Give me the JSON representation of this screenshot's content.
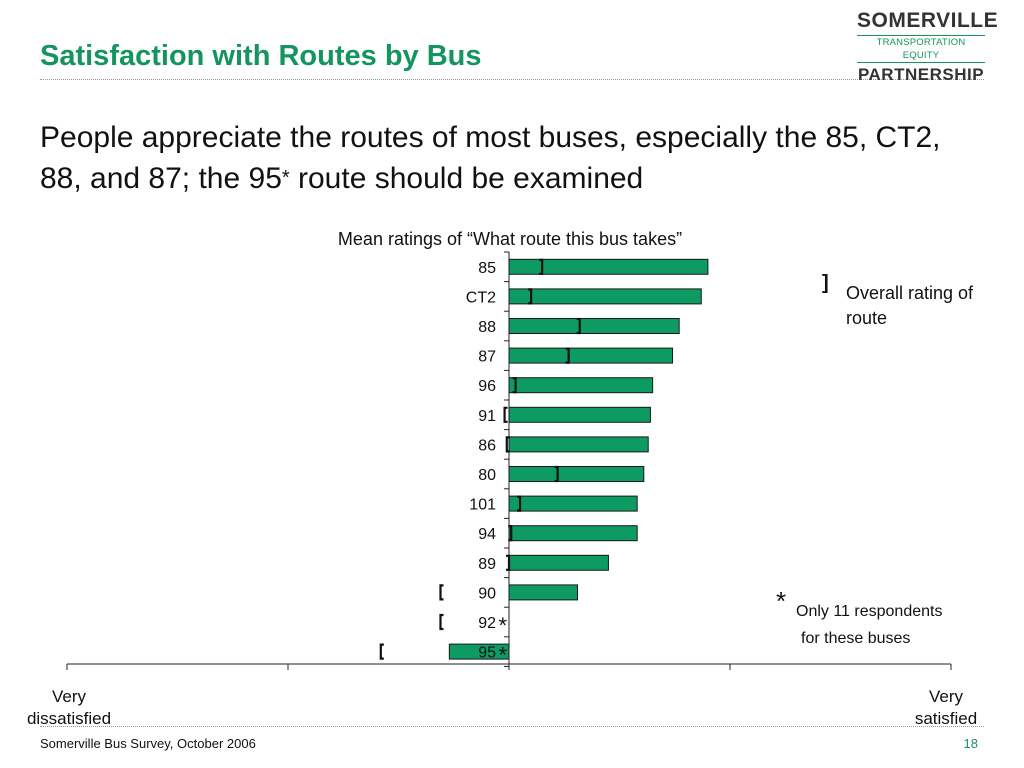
{
  "slide": {
    "title": "Satisfaction with Routes by Bus",
    "subtitle_main": "People appreciate the routes of most buses, especially the 85, CT2, 88, and 87; the 95",
    "subtitle_star": "*",
    "subtitle_end": " route should be examined",
    "footer": "Somerville Bus Survey, October 2006",
    "page_number": "18"
  },
  "logo": {
    "line1": "SOMERVILLE",
    "line2": "TRANSPORTATION EQUITY",
    "line3": "PARTNERSHIP"
  },
  "legend": {
    "marker": "]",
    "text": "Overall rating of route"
  },
  "note": {
    "star": "*",
    "line1": "Only 11 respondents",
    "line2": "for these buses"
  },
  "colors": {
    "title": "#14945f",
    "bar_fill": "#0e9a63",
    "bar_stroke": "#1a1a1a"
  },
  "chart_data": {
    "type": "bar",
    "orientation": "horizontal",
    "title": "Mean ratings of “What route this bus takes”",
    "xlabel_left": "Very dissatisfied",
    "xlabel_right": "Very satisfied",
    "xlim": [
      -2,
      2
    ],
    "categories": [
      "85",
      "CT2",
      "88",
      "87",
      "96",
      "91",
      "86",
      "80",
      "101",
      "94",
      "89",
      "90",
      "92",
      "95"
    ],
    "values": [
      0.9,
      0.87,
      0.77,
      0.74,
      0.65,
      0.64,
      0.63,
      0.61,
      0.58,
      0.58,
      0.45,
      0.31,
      0.0,
      -0.27
    ],
    "overall_rating": [
      0.15,
      0.1,
      0.32,
      0.27,
      0.03,
      -0.02,
      -0.01,
      0.22,
      0.05,
      0.01,
      0.0,
      -0.31,
      -0.31,
      -0.58
    ],
    "small_sample": [
      "92",
      "95"
    ],
    "small_sample_marker": "*"
  }
}
